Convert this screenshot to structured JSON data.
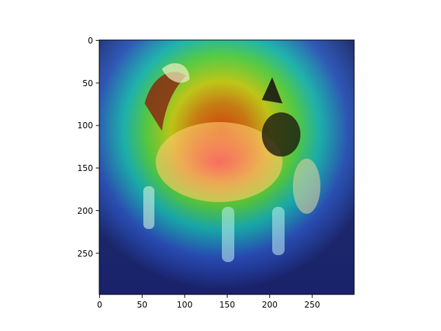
{
  "figure": {
    "image_description_name": "papillon-dog-heatmap-overlay",
    "colormap": "jet",
    "overlay_colors": [
      "#00007f",
      "#0000ff",
      "#00ffff",
      "#7fff00",
      "#ffff00",
      "#ff7f00",
      "#ff0000"
    ]
  },
  "axes": {
    "x": {
      "ticks": [
        0,
        50,
        100,
        150,
        200,
        250
      ],
      "labels": [
        "0",
        "50",
        "100",
        "150",
        "200",
        "250"
      ],
      "range": [
        0,
        299
      ]
    },
    "y": {
      "ticks": [
        0,
        50,
        100,
        150,
        200,
        250
      ],
      "labels": [
        "0",
        "50",
        "100",
        "150",
        "200",
        "250"
      ],
      "range": [
        0,
        299
      ],
      "inverted": true
    }
  }
}
